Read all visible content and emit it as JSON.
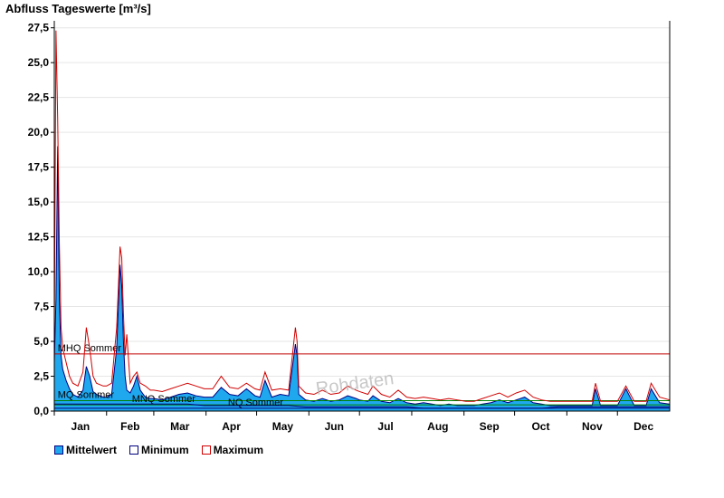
{
  "chart_data": {
    "type": "area",
    "title": "Abfluss Tageswerte [m³/s]",
    "ylim": [
      0,
      28
    ],
    "yticks": [
      0,
      2.5,
      5,
      7.5,
      10,
      12.5,
      15,
      17.5,
      20,
      22.5,
      25,
      27.5
    ],
    "ytick_labels": [
      "0,0",
      "2,5",
      "5,0",
      "7,5",
      "10,0",
      "12,5",
      "15,0",
      "17,5",
      "20,0",
      "22,5",
      "25,0",
      "27,5"
    ],
    "x_domain": [
      1,
      366
    ],
    "months": [
      {
        "label": "Jan",
        "start": 1
      },
      {
        "label": "Feb",
        "start": 32
      },
      {
        "label": "Mar",
        "start": 60
      },
      {
        "label": "Apr",
        "start": 91
      },
      {
        "label": "May",
        "start": 121
      },
      {
        "label": "Jun",
        "start": 152
      },
      {
        "label": "Jul",
        "start": 182
      },
      {
        "label": "Aug",
        "start": 213
      },
      {
        "label": "Sep",
        "start": 244
      },
      {
        "label": "Oct",
        "start": 274
      },
      {
        "label": "Nov",
        "start": 305
      },
      {
        "label": "Dec",
        "start": 335
      }
    ],
    "series": [
      {
        "name": "Mittelwert",
        "color": "#1fa8ee",
        "x": [
          1,
          2,
          3,
          4,
          5,
          6,
          8,
          10,
          12,
          15,
          18,
          20,
          22,
          24,
          26,
          30,
          32,
          35,
          38,
          40,
          41,
          42,
          43,
          44,
          46,
          48,
          50,
          52,
          55,
          58,
          60,
          65,
          70,
          75,
          80,
          85,
          90,
          95,
          100,
          105,
          110,
          115,
          120,
          123,
          126,
          130,
          135,
          140,
          144,
          145,
          146,
          150,
          155,
          160,
          165,
          170,
          175,
          180,
          182,
          187,
          190,
          195,
          200,
          205,
          210,
          215,
          220,
          225,
          230,
          235,
          240,
          245,
          250,
          255,
          260,
          265,
          270,
          275,
          280,
          285,
          290,
          295,
          300,
          305,
          310,
          315,
          320,
          322,
          325,
          330,
          335,
          340,
          345,
          350,
          352,
          355,
          360,
          366
        ],
        "values": [
          3.5,
          8.0,
          19.0,
          8.0,
          4.0,
          3.0,
          2.2,
          1.6,
          1.2,
          1.0,
          1.5,
          3.2,
          2.5,
          1.4,
          1.2,
          1.0,
          1.0,
          1.2,
          4.5,
          10.5,
          9.0,
          5.0,
          2.5,
          1.5,
          1.3,
          1.8,
          2.5,
          1.5,
          1.0,
          0.9,
          0.9,
          0.8,
          1.0,
          1.2,
          1.3,
          1.1,
          1.0,
          1.0,
          1.7,
          1.2,
          1.1,
          1.6,
          1.1,
          1.0,
          2.2,
          1.0,
          1.2,
          1.1,
          4.8,
          4.0,
          1.2,
          0.8,
          0.7,
          0.9,
          0.7,
          0.8,
          1.1,
          0.9,
          0.8,
          0.7,
          1.1,
          0.7,
          0.6,
          0.9,
          0.6,
          0.5,
          0.6,
          0.5,
          0.4,
          0.5,
          0.4,
          0.4,
          0.4,
          0.5,
          0.6,
          0.8,
          0.6,
          0.8,
          1.0,
          0.6,
          0.5,
          0.4,
          0.4,
          0.4,
          0.4,
          0.4,
          0.4,
          1.6,
          0.4,
          0.4,
          0.4,
          1.6,
          0.4,
          0.4,
          0.4,
          1.6,
          0.6,
          0.5
        ]
      },
      {
        "name": "Minimum",
        "color": "#000080",
        "x": [
          1,
          10,
          20,
          30,
          40,
          50,
          60,
          70,
          80,
          90,
          100,
          110,
          120,
          130,
          140,
          150,
          160,
          170,
          180,
          190,
          200,
          210,
          220,
          230,
          240,
          250,
          260,
          270,
          280,
          290,
          300,
          310,
          320,
          330,
          340,
          350,
          366
        ],
        "values": [
          0.5,
          0.5,
          0.5,
          0.5,
          0.5,
          0.5,
          0.5,
          0.5,
          0.5,
          0.4,
          0.4,
          0.4,
          0.4,
          0.4,
          0.4,
          0.3,
          0.3,
          0.3,
          0.3,
          0.3,
          0.3,
          0.3,
          0.2,
          0.2,
          0.2,
          0.2,
          0.2,
          0.2,
          0.2,
          0.2,
          0.3,
          0.3,
          0.3,
          0.3,
          0.3,
          0.3,
          0.3
        ]
      },
      {
        "name": "Maximum",
        "color": "#d00000",
        "x": [
          1,
          2,
          3,
          4,
          5,
          6,
          8,
          10,
          12,
          15,
          18,
          20,
          22,
          24,
          26,
          30,
          32,
          35,
          38,
          40,
          41,
          42,
          43,
          44,
          46,
          48,
          50,
          52,
          55,
          58,
          60,
          65,
          70,
          75,
          80,
          85,
          90,
          95,
          100,
          105,
          110,
          115,
          120,
          123,
          126,
          130,
          135,
          140,
          144,
          145,
          146,
          150,
          155,
          160,
          165,
          170,
          175,
          180,
          182,
          187,
          190,
          195,
          200,
          205,
          210,
          215,
          220,
          225,
          230,
          235,
          240,
          245,
          250,
          255,
          260,
          265,
          270,
          275,
          280,
          285,
          290,
          295,
          300,
          305,
          310,
          315,
          320,
          322,
          325,
          330,
          335,
          340,
          345,
          350,
          352,
          355,
          360,
          366
        ],
        "values": [
          5.0,
          27.3,
          21.0,
          12.0,
          6.0,
          4.5,
          3.5,
          2.5,
          2.0,
          1.8,
          2.8,
          6.0,
          4.5,
          2.5,
          2.0,
          1.8,
          1.8,
          2.0,
          6.0,
          11.8,
          11.0,
          7.0,
          4.0,
          5.5,
          2.0,
          2.5,
          2.8,
          2.0,
          1.8,
          1.5,
          1.5,
          1.4,
          1.6,
          1.8,
          2.0,
          1.8,
          1.6,
          1.6,
          2.5,
          1.7,
          1.6,
          2.0,
          1.6,
          1.5,
          2.8,
          1.5,
          1.6,
          1.5,
          6.0,
          5.0,
          1.8,
          1.3,
          1.2,
          1.5,
          1.2,
          1.3,
          1.8,
          1.5,
          1.4,
          1.2,
          1.8,
          1.2,
          1.0,
          1.5,
          1.0,
          0.9,
          1.0,
          0.9,
          0.8,
          0.9,
          0.8,
          0.7,
          0.7,
          0.9,
          1.1,
          1.3,
          1.0,
          1.3,
          1.5,
          1.0,
          0.8,
          0.7,
          0.7,
          0.7,
          0.7,
          0.7,
          0.7,
          2.0,
          0.7,
          0.7,
          0.7,
          1.8,
          0.7,
          0.7,
          0.7,
          2.0,
          1.0,
          0.8
        ]
      }
    ],
    "reference_lines": [
      {
        "label": "MHQ Sommer",
        "value": 4.1,
        "color": "#c00000",
        "x_label": 3
      },
      {
        "label": "MQ Sommer",
        "value": 0.75,
        "color": "#008000",
        "x_label": 3
      },
      {
        "label": "MNQ Sommer",
        "value": 0.45,
        "color": "#008000",
        "x_label": 47
      },
      {
        "label": "NQ Sommer",
        "value": 0.2,
        "color": "#000080",
        "x_label": 104
      }
    ],
    "watermark": "Rohdaten",
    "grid": true,
    "legend_position": "bottom-left"
  }
}
